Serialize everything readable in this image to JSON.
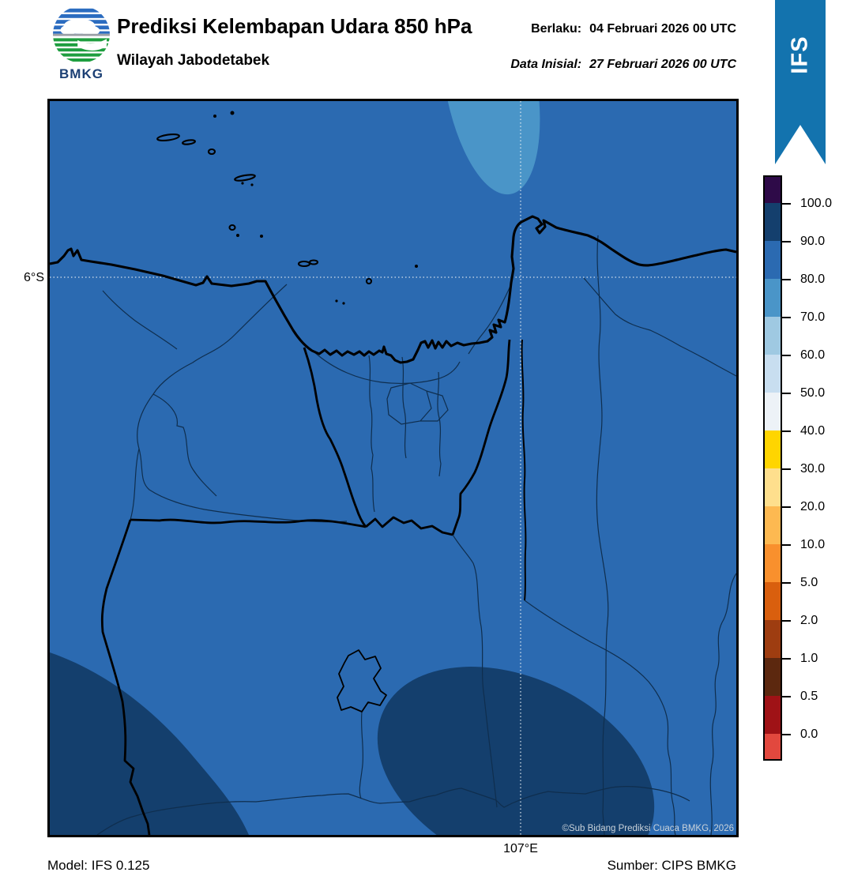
{
  "header": {
    "title": "Prediksi Kelembapan Udara 850 hPa",
    "subtitle": "Wilayah Jabodetabek",
    "valid_label": "Berlaku:",
    "valid_value": "04 Februari 2026 00 UTC",
    "initial_label": "Data Inisial:",
    "initial_value": "27 Februari 2026 00 UTC",
    "logo_text": "BMKG",
    "ribbon_label": "IFS",
    "ribbon_color": "#1373ae"
  },
  "map": {
    "lat_tick": "6°S",
    "lon_tick": "107°E",
    "copyright": "©Sub Bidang Prediksi Cuaca BMKG, 2026",
    "colors": {
      "base": "#2b6ab1",
      "humid_90_100": "#143f6d",
      "humid_70_80": "#4a95c8",
      "boundary_thick": "#000000",
      "boundary_thin": "#0f2e4e",
      "island": "#000000",
      "gridline": "#e9eef3",
      "copyright_text": "#c9d2da"
    },
    "field": {
      "parameter": "Kelembapan Udara (RH) 850 hPa",
      "unit": "%",
      "base_value_range": "80-90",
      "regions": [
        {
          "location": "utara (Laut Jawa, atas tengah)",
          "value_range": "70-80"
        },
        {
          "location": "barat daya (pojok kiri bawah)",
          "value_range": "90-100"
        },
        {
          "location": "selatan tengah",
          "value_range": "90-100"
        }
      ]
    }
  },
  "colorbar": {
    "tick_labels": [
      "100.0",
      "90.0",
      "80.0",
      "70.0",
      "60.0",
      "50.0",
      "40.0",
      "30.0",
      "20.0",
      "10.0",
      "5.0",
      "2.0",
      "1.0",
      "0.5",
      "0.0"
    ],
    "segment_colors": [
      "#2e0a48",
      "#143f6d",
      "#2b6ab1",
      "#4a95c8",
      "#9fc9e2",
      "#c8def0",
      "#edf2f7",
      "#ffd500",
      "#fedf8d",
      "#fdb951",
      "#f9902d",
      "#d95f0e",
      "#9e3d10",
      "#5c280f",
      "#9f1216",
      "#e2483e"
    ]
  },
  "footer": {
    "model": "Model: IFS 0.125",
    "source": "Sumber: CIPS BMKG"
  }
}
